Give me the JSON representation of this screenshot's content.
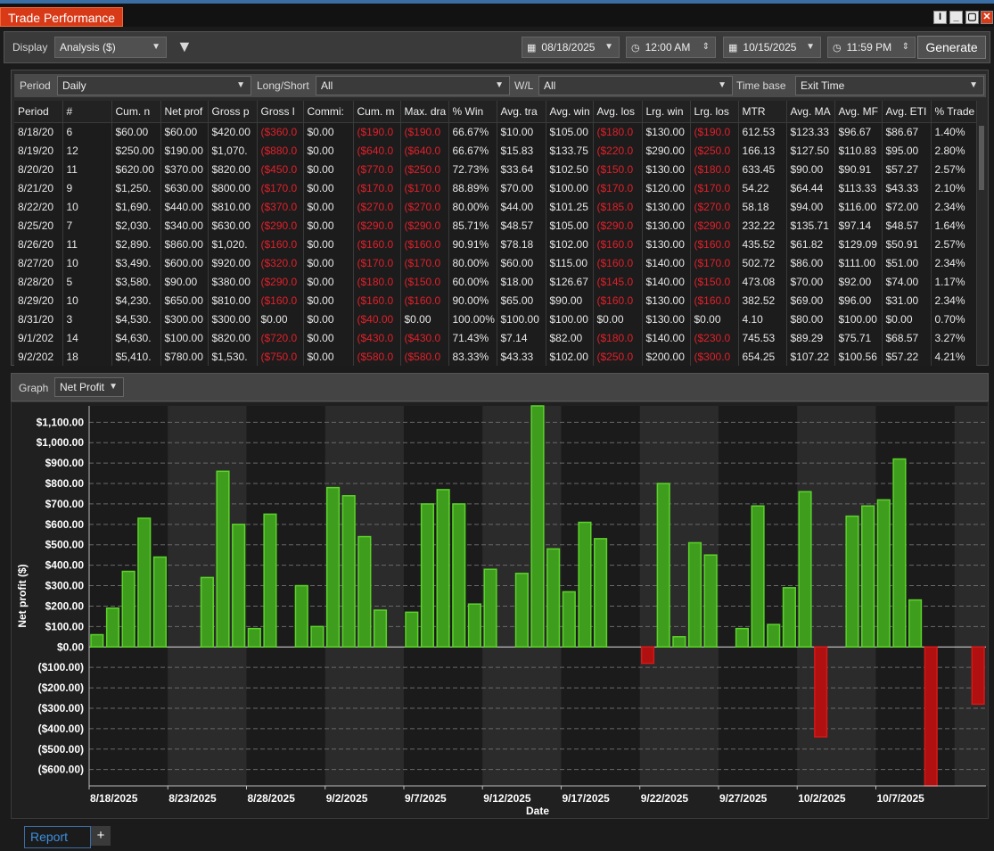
{
  "window": {
    "title": "Trade Performance"
  },
  "toolbar": {
    "display_label": "Display",
    "display_value": "Analysis ($)",
    "start_date": "08/18/2025",
    "start_time": "12:00 AM",
    "end_date": "10/15/2025",
    "end_time": "11:59 PM",
    "generate_label": "Generate"
  },
  "filters": {
    "period_label": "Period",
    "period_value": "Daily",
    "longshort_label": "Long/Short",
    "longshort_value": "All",
    "wl_label": "W/L",
    "wl_value": "All",
    "timebase_label": "Time base",
    "timebase_value": "Exit Time"
  },
  "grid": {
    "columns": [
      "Period",
      "#",
      "Cum. n",
      "Net prof",
      "Gross p",
      "Gross l",
      "Commi:",
      "Cum. m",
      "Max. dra",
      "% Win",
      "Avg. tra",
      "Avg. win",
      "Avg. los",
      "Lrg. win",
      "Lrg. los",
      "MTR",
      "Avg. MA",
      "Avg. MF",
      "Avg. ETI",
      "% Trade"
    ],
    "rows": [
      [
        "8/18/20",
        "6",
        "$60.00",
        "$60.00",
        "$420.00",
        "($360.0",
        "$0.00",
        "($190.0",
        "($190.0",
        "66.67%",
        "$10.00",
        "$105.00",
        "($180.0",
        "$130.00",
        "($190.0",
        "612.53",
        "$123.33",
        "$96.67",
        "$86.67",
        "1.40%"
      ],
      [
        "8/19/20",
        "12",
        "$250.00",
        "$190.00",
        "$1,070.",
        "($880.0",
        "$0.00",
        "($640.0",
        "($640.0",
        "66.67%",
        "$15.83",
        "$133.75",
        "($220.0",
        "$290.00",
        "($250.0",
        "166.13",
        "$127.50",
        "$110.83",
        "$95.00",
        "2.80%"
      ],
      [
        "8/20/20",
        "11",
        "$620.00",
        "$370.00",
        "$820.00",
        "($450.0",
        "$0.00",
        "($770.0",
        "($250.0",
        "72.73%",
        "$33.64",
        "$102.50",
        "($150.0",
        "$130.00",
        "($180.0",
        "633.45",
        "$90.00",
        "$90.91",
        "$57.27",
        "2.57%"
      ],
      [
        "8/21/20",
        "9",
        "$1,250.",
        "$630.00",
        "$800.00",
        "($170.0",
        "$0.00",
        "($170.0",
        "($170.0",
        "88.89%",
        "$70.00",
        "$100.00",
        "($170.0",
        "$120.00",
        "($170.0",
        "54.22",
        "$64.44",
        "$113.33",
        "$43.33",
        "2.10%"
      ],
      [
        "8/22/20",
        "10",
        "$1,690.",
        "$440.00",
        "$810.00",
        "($370.0",
        "$0.00",
        "($270.0",
        "($270.0",
        "80.00%",
        "$44.00",
        "$101.25",
        "($185.0",
        "$130.00",
        "($270.0",
        "58.18",
        "$94.00",
        "$116.00",
        "$72.00",
        "2.34%"
      ],
      [
        "8/25/20",
        "7",
        "$2,030.",
        "$340.00",
        "$630.00",
        "($290.0",
        "$0.00",
        "($290.0",
        "($290.0",
        "85.71%",
        "$48.57",
        "$105.00",
        "($290.0",
        "$130.00",
        "($290.0",
        "232.22",
        "$135.71",
        "$97.14",
        "$48.57",
        "1.64%"
      ],
      [
        "8/26/20",
        "11",
        "$2,890.",
        "$860.00",
        "$1,020.",
        "($160.0",
        "$0.00",
        "($160.0",
        "($160.0",
        "90.91%",
        "$78.18",
        "$102.00",
        "($160.0",
        "$130.00",
        "($160.0",
        "435.52",
        "$61.82",
        "$129.09",
        "$50.91",
        "2.57%"
      ],
      [
        "8/27/20",
        "10",
        "$3,490.",
        "$600.00",
        "$920.00",
        "($320.0",
        "$0.00",
        "($170.0",
        "($170.0",
        "80.00%",
        "$60.00",
        "$115.00",
        "($160.0",
        "$140.00",
        "($170.0",
        "502.72",
        "$86.00",
        "$111.00",
        "$51.00",
        "2.34%"
      ],
      [
        "8/28/20",
        "5",
        "$3,580.",
        "$90.00",
        "$380.00",
        "($290.0",
        "$0.00",
        "($180.0",
        "($150.0",
        "60.00%",
        "$18.00",
        "$126.67",
        "($145.0",
        "$140.00",
        "($150.0",
        "473.08",
        "$70.00",
        "$92.00",
        "$74.00",
        "1.17%"
      ],
      [
        "8/29/20",
        "10",
        "$4,230.",
        "$650.00",
        "$810.00",
        "($160.0",
        "$0.00",
        "($160.0",
        "($160.0",
        "90.00%",
        "$65.00",
        "$90.00",
        "($160.0",
        "$130.00",
        "($160.0",
        "382.52",
        "$69.00",
        "$96.00",
        "$31.00",
        "2.34%"
      ],
      [
        "8/31/20",
        "3",
        "$4,530.",
        "$300.00",
        "$300.00",
        "$0.00",
        "$0.00",
        "($40.00",
        "$0.00",
        "100.00%",
        "$100.00",
        "$100.00",
        "$0.00",
        "$130.00",
        "$0.00",
        "4.10",
        "$80.00",
        "$100.00",
        "$0.00",
        "0.70%"
      ],
      [
        "9/1/202",
        "14",
        "$4,630.",
        "$100.00",
        "$820.00",
        "($720.0",
        "$0.00",
        "($430.0",
        "($430.0",
        "71.43%",
        "$7.14",
        "$82.00",
        "($180.0",
        "$140.00",
        "($230.0",
        "745.53",
        "$89.29",
        "$75.71",
        "$68.57",
        "3.27%"
      ],
      [
        "9/2/202",
        "18",
        "$5,410.",
        "$780.00",
        "$1,530.",
        "($750.0",
        "$0.00",
        "($580.0",
        "($580.0",
        "83.33%",
        "$43.33",
        "$102.00",
        "($250.0",
        "$200.00",
        "($300.0",
        "654.25",
        "$107.22",
        "$100.56",
        "$57.22",
        "4.21%"
      ]
    ]
  },
  "graph": {
    "label": "Graph",
    "selection": "Net Profit"
  },
  "chart_data": {
    "type": "bar",
    "title": "",
    "xlabel": "Date",
    "ylabel": "Net profit ($)",
    "ylim": [
      -680,
      1180
    ],
    "y_ticks": [
      "$1,100.00",
      "$1,000.00",
      "$900.00",
      "$800.00",
      "$700.00",
      "$600.00",
      "$500.00",
      "$400.00",
      "$300.00",
      "$200.00",
      "$100.00",
      "$0.00",
      "($100.00)",
      "($200.00)",
      "($300.00)",
      "($400.00)",
      "($500.00)",
      "($600.00)"
    ],
    "x_tick_labels": [
      "8/18/2025",
      "8/23/2025",
      "8/28/2025",
      "9/2/2025",
      "9/7/2025",
      "9/12/2025",
      "9/17/2025",
      "9/22/2025",
      "9/27/2025",
      "10/2/2025",
      "10/7/2025"
    ],
    "x_start": "2025-08-18",
    "grid": true,
    "shaded_bands": true,
    "values": [
      60,
      190,
      370,
      630,
      440,
      null,
      null,
      340,
      860,
      600,
      90,
      650,
      null,
      300,
      100,
      780,
      740,
      540,
      180,
      null,
      170,
      700,
      770,
      700,
      210,
      380,
      null,
      360,
      1180,
      480,
      270,
      610,
      530,
      null,
      null,
      -80,
      800,
      50,
      510,
      450,
      null,
      90,
      690,
      110,
      290,
      760,
      -440,
      null,
      640,
      690,
      720,
      920,
      230,
      -680,
      null,
      null,
      -280
    ],
    "colors": {
      "positive": "#5bd32a",
      "negative": "#d81818"
    }
  },
  "tabs": {
    "report_label": "Report",
    "add_label": "+"
  }
}
